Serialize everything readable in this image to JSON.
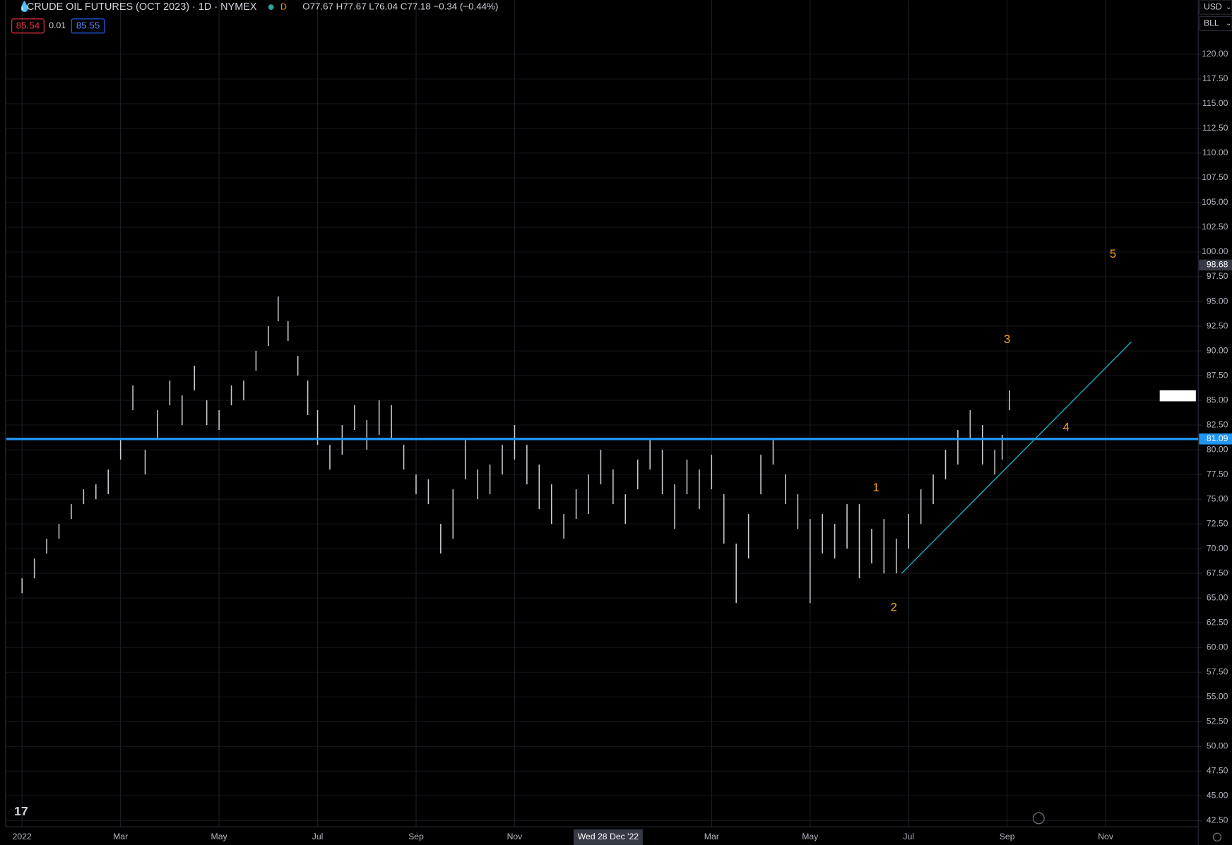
{
  "chart_data": {
    "type": "ohlc",
    "title": "CRUDE OIL FUTURES (OCT 2023) · 1D · NYMEX",
    "interval_badge": "D",
    "ohlc_readout": "O77.67 H77.67 L76.04 C77.18 −0.34 (−0.44%)",
    "quote": {
      "bid": "85.54",
      "spread": "0.01",
      "ask": "85.55"
    },
    "currency": "USD",
    "unit": "BLL",
    "color": "#c9cbd2",
    "grid": true,
    "xlim": [
      -0.32,
      23.88
    ],
    "ylim": [
      41.86,
      125.48
    ],
    "xticks": [
      {
        "value": 0,
        "label": "2022"
      },
      {
        "value": 2,
        "label": "Mar"
      },
      {
        "value": 4,
        "label": "May"
      },
      {
        "value": 6,
        "label": "Jul"
      },
      {
        "value": 8,
        "label": "Sep"
      },
      {
        "value": 10,
        "label": "Nov"
      },
      {
        "value": 14,
        "label": "Mar"
      },
      {
        "value": 16,
        "label": "May"
      },
      {
        "value": 18,
        "label": "Jul"
      },
      {
        "value": 20,
        "label": "Sep"
      },
      {
        "value": 22,
        "label": "Nov"
      }
    ],
    "yticks": [
      {
        "value": 42.5,
        "label": "42.50"
      },
      {
        "value": 45,
        "label": "45.00"
      },
      {
        "value": 47.5,
        "label": "47.50"
      },
      {
        "value": 50,
        "label": "50.00"
      },
      {
        "value": 52.5,
        "label": "52.50"
      },
      {
        "value": 55,
        "label": "55.00"
      },
      {
        "value": 57.5,
        "label": "57.50"
      },
      {
        "value": 60,
        "label": "60.00"
      },
      {
        "value": 62.5,
        "label": "62.50"
      },
      {
        "value": 65,
        "label": "65.00"
      },
      {
        "value": 67.5,
        "label": "67.50"
      },
      {
        "value": 70,
        "label": "70.00"
      },
      {
        "value": 72.5,
        "label": "72.50"
      },
      {
        "value": 75,
        "label": "75.00"
      },
      {
        "value": 77.5,
        "label": "77.50"
      },
      {
        "value": 80,
        "label": "80.00"
      },
      {
        "value": 82.5,
        "label": "82.50"
      },
      {
        "value": 85,
        "label": "85.00"
      },
      {
        "value": 87.5,
        "label": "87.50"
      },
      {
        "value": 90,
        "label": "90.00"
      },
      {
        "value": 92.5,
        "label": "92.50"
      },
      {
        "value": 95,
        "label": "95.00"
      },
      {
        "value": 97.5,
        "label": "97.50"
      },
      {
        "value": 100,
        "label": "100.00"
      },
      {
        "value": 102.5,
        "label": "102.50"
      },
      {
        "value": 105,
        "label": "105.00"
      },
      {
        "value": 107.5,
        "label": "107.50"
      },
      {
        "value": 110,
        "label": "110.00"
      },
      {
        "value": 112.5,
        "label": "112.50"
      },
      {
        "value": 115,
        "label": "115.00"
      },
      {
        "value": 117.5,
        "label": "117.50"
      },
      {
        "value": 120,
        "label": "120.00"
      }
    ],
    "x": [
      0.0,
      0.25,
      0.5,
      0.75,
      1.0,
      1.25,
      1.5,
      1.75,
      2.0,
      2.25,
      2.5,
      2.75,
      3.0,
      3.25,
      3.5,
      3.75,
      4.0,
      4.25,
      4.5,
      4.75,
      5.0,
      5.2,
      5.4,
      5.6,
      5.8,
      6.0,
      6.25,
      6.5,
      6.75,
      7.0,
      7.25,
      7.5,
      7.75,
      8.0,
      8.25,
      8.5,
      8.75,
      9.0,
      9.25,
      9.5,
      9.75,
      10.0,
      10.25,
      10.5,
      10.75,
      11.0,
      11.25,
      11.5,
      11.75,
      12.0,
      12.25,
      12.5,
      12.75,
      13.0,
      13.25,
      13.5,
      13.75,
      14.0,
      14.25,
      14.5,
      14.75,
      15.0,
      15.25,
      15.5,
      15.75,
      16.0,
      16.25,
      16.5,
      16.75,
      17.0,
      17.25,
      17.5,
      17.75,
      18.0,
      18.25,
      18.5,
      18.75,
      19.0,
      19.25,
      19.5,
      19.75,
      19.9,
      20.05
    ],
    "high": [
      67,
      69,
      71,
      72.5,
      74.5,
      76,
      76.5,
      78,
      81,
      86.5,
      80,
      84,
      87,
      85.5,
      88.5,
      85,
      84,
      86.5,
      87,
      90,
      92.5,
      95.5,
      93,
      89.5,
      87,
      84,
      80.5,
      82.5,
      84.5,
      83,
      85,
      84.5,
      80.5,
      77.5,
      77,
      72.5,
      76,
      81,
      78,
      78.5,
      80.5,
      82.5,
      80.5,
      78.5,
      76.5,
      73.5,
      76,
      77.5,
      80,
      78,
      75.5,
      79,
      81,
      80,
      76.5,
      79,
      78,
      79.5,
      75.5,
      70.5,
      73.5,
      79.5,
      81,
      77.5,
      75.5,
      73,
      73.5,
      72.5,
      74.5,
      74.5,
      72,
      73,
      71,
      73.5,
      76,
      77.5,
      80,
      82,
      84,
      82.5,
      80,
      81.5,
      86
    ],
    "low": [
      65.5,
      67,
      69.5,
      71,
      73,
      74.5,
      75,
      75.5,
      79,
      84,
      77.5,
      81,
      84.5,
      82.5,
      86,
      82.5,
      82,
      84.5,
      85,
      88,
      90.5,
      93,
      91,
      87.5,
      83.5,
      80.5,
      78,
      79.5,
      82,
      80,
      81.5,
      81,
      78,
      75.5,
      74.5,
      69.5,
      71,
      77,
      75,
      75.5,
      77.5,
      79,
      76.5,
      74,
      72.5,
      71,
      73,
      73.5,
      76.5,
      74.5,
      72.5,
      76,
      78,
      75.5,
      72,
      75.5,
      74,
      76,
      70.5,
      64.5,
      69,
      75.5,
      78.5,
      74.5,
      72,
      64.5,
      69.5,
      69,
      70,
      67,
      68.5,
      67.5,
      67.5,
      70,
      72.5,
      74.5,
      77,
      78.5,
      81,
      78.5,
      77.5,
      79,
      84
    ],
    "horizontal_line": {
      "value": 81.09,
      "color": "#2196f3"
    },
    "trendline": {
      "x": [
        17.86,
        22.52
      ],
      "y": [
        67.5,
        90.9
      ],
      "color": "#1fa3b8"
    },
    "crosshair": {
      "x": {
        "value": 11.9,
        "label": "Wed 28 Dec '22"
      },
      "y": 98.68
    },
    "annotations": [
      {
        "text": "1",
        "x": 17.34,
        "y": 76.1
      },
      {
        "text": "2",
        "x": 17.7,
        "y": 64.0
      },
      {
        "text": "3",
        "x": 20.0,
        "y": 91.1
      },
      {
        "text": "4",
        "x": 21.2,
        "y": 82.2
      },
      {
        "text": "5",
        "x": 22.15,
        "y": 99.75
      }
    ],
    "annotation_color": "#f7a21b"
  }
}
